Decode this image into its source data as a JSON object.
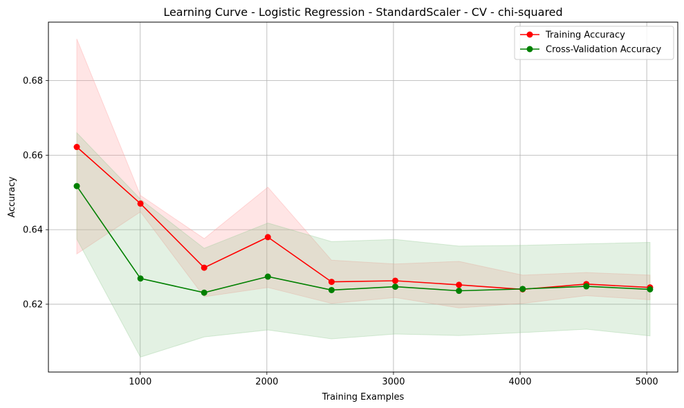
{
  "chart_data": {
    "type": "line",
    "title": "Learning Curve - Logistic Regression - StandardScaler - CV - chi-squared",
    "xlabel": "Training Examples",
    "ylabel": "Accuracy",
    "xlim": [
      275,
      5245
    ],
    "ylim": [
      0.6018,
      0.6957
    ],
    "xticks": [
      1000,
      2000,
      3000,
      4000,
      5000
    ],
    "yticks": [
      0.62,
      0.64,
      0.66,
      0.68
    ],
    "grid": true,
    "legend_position": "top-right",
    "x": [
      499,
      1002,
      1505,
      2008,
      2511,
      3014,
      3517,
      4020,
      4523,
      5026
    ],
    "series": [
      {
        "name": "Training Accuracy",
        "color": "#ff0000",
        "band_color": "#ff9999",
        "values": [
          0.6622,
          0.647,
          0.6298,
          0.638,
          0.626,
          0.6263,
          0.6252,
          0.624,
          0.6254,
          0.6245
        ],
        "upper": [
          0.6912,
          0.6492,
          0.6376,
          0.6514,
          0.6318,
          0.6308,
          0.6315,
          0.6278,
          0.6285,
          0.6278
        ],
        "lower": [
          0.6335,
          0.6448,
          0.622,
          0.6245,
          0.6202,
          0.6218,
          0.619,
          0.6202,
          0.6223,
          0.6212
        ]
      },
      {
        "name": "Cross-Validation Accuracy",
        "color": "#008000",
        "band_color": "#8fc98f",
        "values": [
          0.6517,
          0.6269,
          0.6231,
          0.6274,
          0.6238,
          0.6247,
          0.6236,
          0.6241,
          0.6248,
          0.624
        ],
        "upper": [
          0.666,
          0.6482,
          0.635,
          0.6418,
          0.6368,
          0.6374,
          0.6356,
          0.6358,
          0.6362,
          0.6366
        ],
        "lower": [
          0.6375,
          0.6058,
          0.6112,
          0.6131,
          0.6107,
          0.612,
          0.6116,
          0.6124,
          0.6133,
          0.6115
        ]
      }
    ]
  }
}
